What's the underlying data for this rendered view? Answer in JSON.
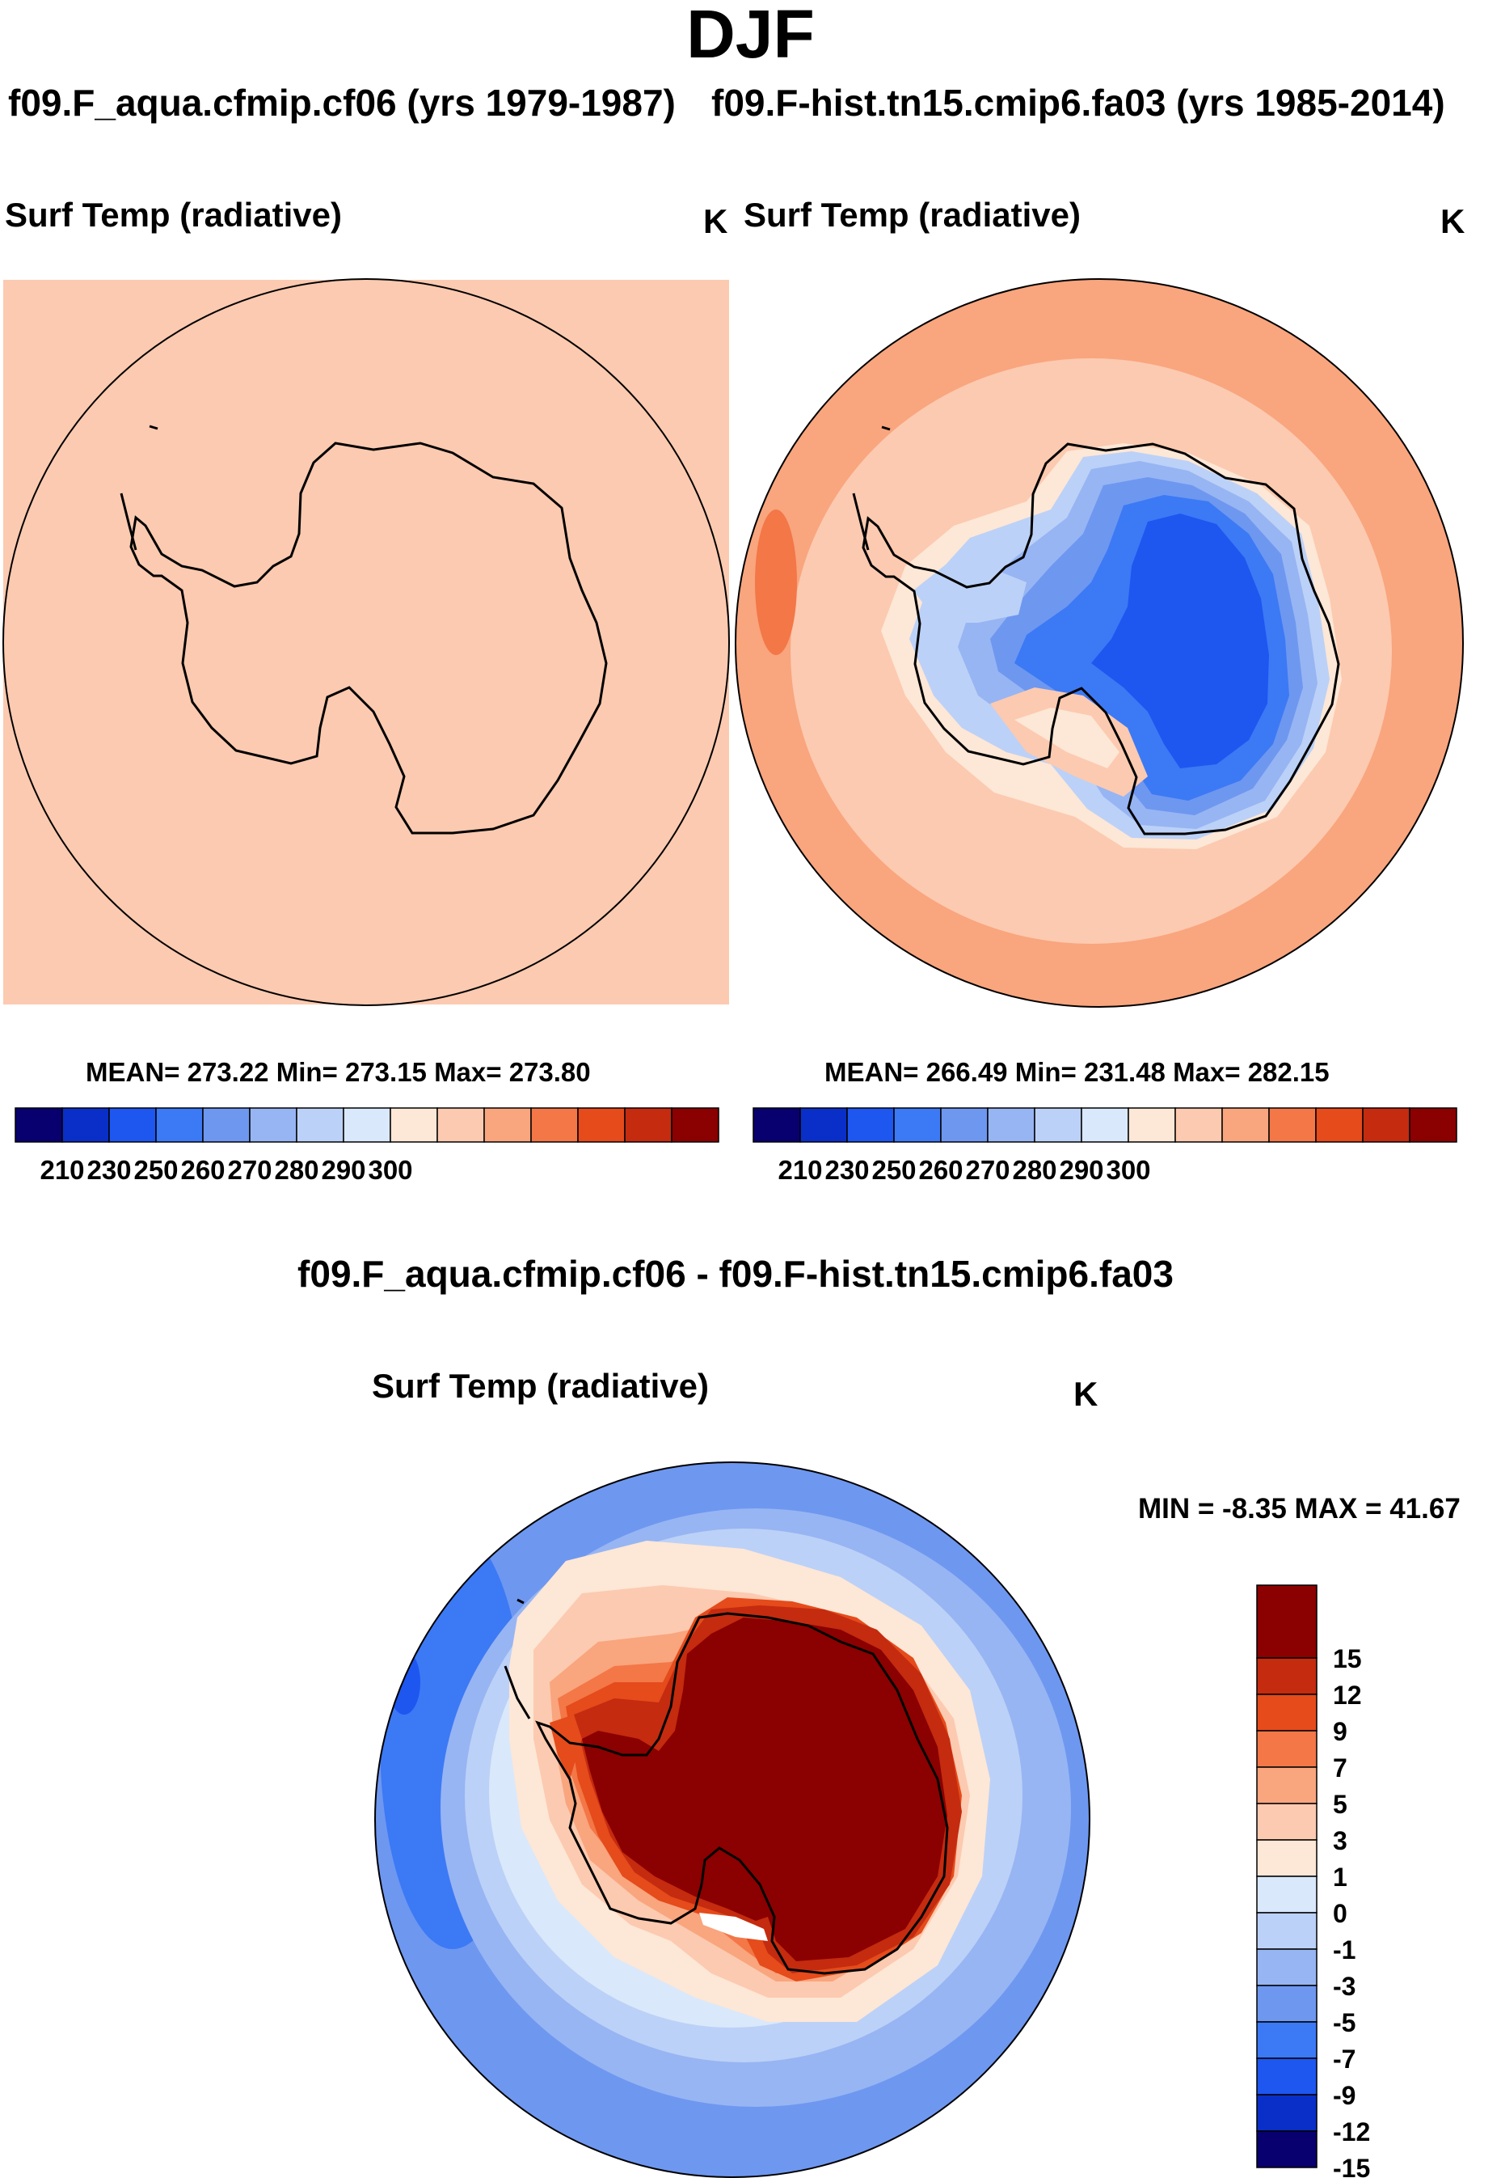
{
  "main_title": "DJF",
  "case_left": "f09.F_aqua.cfmip.cf06 (yrs 1979-1987)",
  "case_right": "f09.F-hist.tn15.cmip6.fa03 (yrs 1985-2014)",
  "diff_title": "f09.F_aqua.cfmip.cf06 - f09.F-hist.tn15.cmip6.fa03",
  "colors": {
    "abs": [
      "#08006e",
      "#0a2fc8",
      "#1e56f0",
      "#3c79f5",
      "#6e97f0",
      "#97b5f3",
      "#bcd1f7",
      "#dae8fb",
      "#fde7d6",
      "#fccab0",
      "#f9a57e",
      "#f37747",
      "#e54b1b",
      "#c42b0f",
      "#8b0000"
    ],
    "diff": [
      "#08006e",
      "#0a2fc8",
      "#1e56f0",
      "#3c79f5",
      "#6e97f0",
      "#97b5f3",
      "#bcd1f7",
      "#dae8fb",
      "#fde7d6",
      "#fccab0",
      "#f9a57e",
      "#f37747",
      "#e54b1b",
      "#c42b0f",
      "#8b0000"
    ]
  },
  "chart_data": [
    {
      "type": "heatmap",
      "title": "Surf Temp (radiative)",
      "units": "K",
      "projection": "south polar stereographic",
      "stats": "MEAN= 273.22  Min= 273.15  Max= 273.80",
      "mean": 273.22,
      "min": 273.15,
      "max": 273.8,
      "colorbar_ticks": [
        "210",
        "230",
        "250",
        "260",
        "270",
        "280",
        "290",
        "300"
      ]
    },
    {
      "type": "heatmap",
      "title": "Surf Temp (radiative)",
      "units": "K",
      "projection": "south polar stereographic",
      "stats": "MEAN= 266.49  Min= 231.48  Max= 282.15",
      "mean": 266.49,
      "min": 231.48,
      "max": 282.15,
      "colorbar_ticks": [
        "210",
        "230",
        "250",
        "260",
        "270",
        "280",
        "290",
        "300"
      ]
    },
    {
      "type": "heatmap",
      "title": "Surf Temp (radiative)",
      "units": "K",
      "projection": "south polar stereographic",
      "stats": "MIN =  -8.35 MAX =  41.67",
      "min": -8.35,
      "max": 41.67,
      "colorbar_ticks": [
        "15",
        "12",
        "9",
        "7",
        "5",
        "3",
        "1",
        "0",
        "-1",
        "-3",
        "-5",
        "-7",
        "-9",
        "-12",
        "-15"
      ]
    }
  ]
}
